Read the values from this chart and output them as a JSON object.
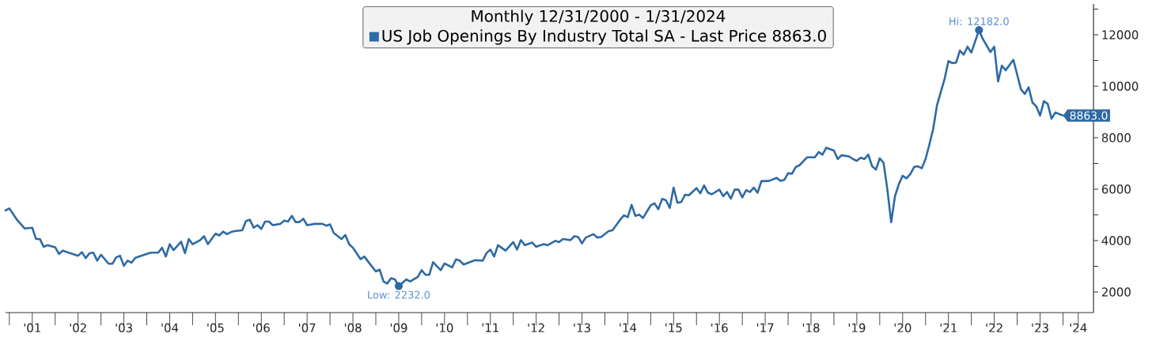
{
  "chart_data": {
    "type": "line",
    "legend_title": "Monthly 12/31/2000 - 1/31/2024",
    "legend": "top",
    "x": [
      "2000-12",
      "2001-01",
      "2001-03",
      "2001-05",
      "2001-07",
      "2001-08",
      "2001-09",
      "2001-10",
      "2001-11",
      "2002-01",
      "2002-02",
      "2002-03",
      "2002-05",
      "2002-07",
      "2002-08",
      "2002-09",
      "2002-10",
      "2002-11",
      "2002-12",
      "2003-01",
      "2003-03",
      "2003-04",
      "2003-05",
      "2003-06",
      "2003-07",
      "2003-08",
      "2003-09",
      "2003-10",
      "2003-12",
      "2004-02",
      "2004-04",
      "2004-05",
      "2004-06",
      "2004-07",
      "2004-08",
      "2004-10",
      "2004-11",
      "2004-12",
      "2005-01",
      "2005-03",
      "2005-04",
      "2005-05",
      "2005-07",
      "2005-08",
      "2005-09",
      "2005-10",
      "2005-11",
      "2005-12",
      "2006-02",
      "2006-03",
      "2006-04",
      "2006-05",
      "2006-06",
      "2006-07",
      "2006-08",
      "2006-09",
      "2006-10",
      "2006-12",
      "2007-01",
      "2007-02",
      "2007-03",
      "2007-04",
      "2007-05",
      "2007-06",
      "2007-07",
      "2007-09",
      "2007-11",
      "2007-12",
      "2008-01",
      "2008-02",
      "2008-04",
      "2008-05",
      "2008-06",
      "2008-07",
      "2008-09",
      "2008-10",
      "2008-11",
      "2009-01",
      "2009-02",
      "2009-03",
      "2009-04",
      "2009-05",
      "2009-06",
      "2009-07",
      "2009-09",
      "2009-10",
      "2009-12",
      "2010-01",
      "2010-02",
      "2010-03",
      "2010-04",
      "2010-06",
      "2010-07",
      "2010-09",
      "2010-10",
      "2010-11",
      "2010-12",
      "2011-03",
      "2011-05",
      "2011-06",
      "2011-07",
      "2011-08",
      "2011-09",
      "2011-11",
      "2012-01",
      "2012-02",
      "2012-03",
      "2012-04",
      "2012-06",
      "2012-07",
      "2012-09",
      "2012-10",
      "2012-12",
      "2013-01",
      "2013-02",
      "2013-04",
      "2013-05",
      "2013-06",
      "2013-07",
      "2013-08",
      "2013-10",
      "2013-11",
      "2013-12",
      "2014-02",
      "2014-03",
      "2014-05",
      "2014-06",
      "2014-07",
      "2014-08",
      "2014-09",
      "2014-10",
      "2014-11",
      "2015-01",
      "2015-02",
      "2015-03",
      "2015-04",
      "2015-05",
      "2015-06",
      "2015-07",
      "2015-08",
      "2015-09",
      "2015-10",
      "2015-11",
      "2016-01",
      "2016-02",
      "2016-03",
      "2016-04",
      "2016-05",
      "2016-07",
      "2016-08",
      "2016-09",
      "2016-10",
      "2016-11",
      "2016-12",
      "2017-01",
      "2017-02",
      "2017-03",
      "2017-04",
      "2017-05",
      "2017-06",
      "2017-08",
      "2017-10",
      "2017-11",
      "2017-12",
      "2018-01",
      "2018-02",
      "2018-03",
      "2018-04",
      "2018-06",
      "2018-08",
      "2018-09",
      "2018-10",
      "2018-11",
      "2019-01",
      "2019-02",
      "2019-03",
      "2019-05",
      "2019-06",
      "2019-07",
      "2019-08",
      "2019-09",
      "2019-10",
      "2019-11",
      "2019-12",
      "2020-01",
      "2020-02",
      "2020-03",
      "2020-04",
      "2020-05",
      "2020-06",
      "2020-07",
      "2020-08",
      "2020-09",
      "2020-10",
      "2020-11",
      "2020-12",
      "2021-01",
      "2021-02",
      "2021-03",
      "2021-04",
      "2021-05",
      "2021-06",
      "2021-07",
      "2021-08",
      "2021-09",
      "2021-10",
      "2021-11",
      "2021-12",
      "2022-01",
      "2022-03",
      "2022-04",
      "2022-06",
      "2022-07",
      "2022-08",
      "2022-09",
      "2022-10",
      "2022-12",
      "2023-02",
      "2023-03",
      "2023-04",
      "2023-05",
      "2023-06",
      "2023-07",
      "2023-08",
      "2023-09",
      "2023-10",
      "2023-11",
      "2024-01"
    ],
    "series": [
      {
        "name": "US Job Openings By Industry Total SA - Last Price 8863.0",
        "color": "#2e6aa4",
        "values": [
          5170,
          5250,
          4810,
          4470,
          4500,
          4060,
          4060,
          3760,
          3820,
          3740,
          3480,
          3610,
          3510,
          3410,
          3550,
          3320,
          3510,
          3530,
          3220,
          3450,
          3100,
          3100,
          3350,
          3410,
          3020,
          3220,
          3140,
          3330,
          3430,
          3530,
          3530,
          3720,
          3380,
          3860,
          3630,
          3960,
          3510,
          4060,
          3860,
          4020,
          4170,
          3860,
          4270,
          4200,
          4350,
          4250,
          4330,
          4370,
          4400,
          4760,
          4810,
          4500,
          4600,
          4450,
          4740,
          4740,
          4600,
          4650,
          4780,
          4740,
          4960,
          4720,
          4720,
          4850,
          4600,
          4650,
          4650,
          4580,
          4630,
          4290,
          4060,
          4220,
          3860,
          3720,
          3280,
          3380,
          3180,
          2800,
          2870,
          2410,
          2330,
          2540,
          2490,
          2232,
          2490,
          2410,
          2590,
          2850,
          2670,
          2670,
          3160,
          2850,
          3110,
          2960,
          3270,
          3220,
          3070,
          3240,
          3220,
          3510,
          3650,
          3380,
          3820,
          3610,
          3940,
          3650,
          4020,
          3820,
          3920,
          3760,
          3860,
          3820,
          3990,
          3940,
          4060,
          4020,
          4170,
          4140,
          3890,
          4120,
          4250,
          4120,
          4140,
          4370,
          4400,
          4810,
          4980,
          4910,
          5390,
          4960,
          5010,
          4880,
          5370,
          5450,
          5220,
          5620,
          5570,
          5270,
          6060,
          5470,
          5500,
          5780,
          5760,
          6040,
          5840,
          6140,
          5860,
          5800,
          5980,
          5730,
          5890,
          5630,
          5980,
          5980,
          5680,
          5960,
          5890,
          6060,
          5860,
          6310,
          6320,
          6440,
          6320,
          6360,
          6620,
          6600,
          6860,
          6930,
          7240,
          7240,
          7440,
          7340,
          7610,
          7500,
          7170,
          7320,
          7270,
          7170,
          7100,
          7220,
          7170,
          7340,
          6890,
          6760,
          7200,
          7030,
          5990,
          4710,
          5730,
          6190,
          6520,
          6420,
          6580,
          6860,
          6890,
          6810,
          7170,
          7730,
          8340,
          9260,
          9780,
          10290,
          10980,
          10900,
          10920,
          11390,
          11230,
          11540,
          11310,
          12182,
          11840,
          11330,
          11540,
          10190,
          10800,
          10620,
          11030,
          9880,
          9700,
          9960,
          9370,
          9220,
          8860,
          9420,
          9320,
          8740,
          8980,
          8863
        ]
      }
    ],
    "xlim": [
      "2000-12",
      "2024-09"
    ],
    "xticks": [
      {
        "value": "2001",
        "label": null
      },
      {
        "value": "2002",
        "label": null
      },
      {
        "value": "2003",
        "label": null
      },
      {
        "value": "2004",
        "label": null
      },
      {
        "value": "2005",
        "label": null
      },
      {
        "value": "2006",
        "label": null
      },
      {
        "value": "2007",
        "label": null
      },
      {
        "value": "2008",
        "label": null
      },
      {
        "value": "2009",
        "label": null
      },
      {
        "value": "2010",
        "label": null
      },
      {
        "value": "2011",
        "label": null
      },
      {
        "value": "2012",
        "label": null
      },
      {
        "value": "2013",
        "label": null
      },
      {
        "value": "2014",
        "label": null
      },
      {
        "value": "2015",
        "label": null
      },
      {
        "value": "2016",
        "label": null
      },
      {
        "value": "2017",
        "label": null
      },
      {
        "value": "2018",
        "label": null
      },
      {
        "value": "2019",
        "label": null
      },
      {
        "value": "2020",
        "label": null
      },
      {
        "value": "2021",
        "label": null
      },
      {
        "value": "2022",
        "label": null
      },
      {
        "value": "2023",
        "label": null
      },
      {
        "value": "2024",
        "label": null
      },
      {
        "value": "2001-07",
        "label": "'01"
      },
      {
        "value": "2002-07",
        "label": "'02"
      },
      {
        "value": "2003-07",
        "label": "'03"
      },
      {
        "value": "2004-07",
        "label": "'04"
      },
      {
        "value": "2005-07",
        "label": "'05"
      },
      {
        "value": "2006-07",
        "label": "'06"
      },
      {
        "value": "2007-07",
        "label": "'07"
      },
      {
        "value": "2008-07",
        "label": "'08"
      },
      {
        "value": "2009-07",
        "label": "'09"
      },
      {
        "value": "2010-07",
        "label": "'10"
      },
      {
        "value": "2011-07",
        "label": "'11"
      },
      {
        "value": "2012-07",
        "label": "'12"
      },
      {
        "value": "2013-07",
        "label": "'13"
      },
      {
        "value": "2014-07",
        "label": "'14"
      },
      {
        "value": "2015-07",
        "label": "'15"
      },
      {
        "value": "2016-07",
        "label": "'16"
      },
      {
        "value": "2017-07",
        "label": "'17"
      },
      {
        "value": "2018-07",
        "label": "'18"
      },
      {
        "value": "2019-07",
        "label": "'19"
      },
      {
        "value": "2020-07",
        "label": "'20"
      },
      {
        "value": "2021-07",
        "label": "'21"
      },
      {
        "value": "2022-07",
        "label": "'22"
      },
      {
        "value": "2023-07",
        "label": "'23"
      },
      {
        "value": "2024-05",
        "label": "'24"
      }
    ],
    "ylim": [
      1200,
      13200
    ],
    "yticks": [
      2000,
      {
        "value": 3000,
        "label": null
      },
      4000,
      {
        "value": 5000,
        "label": null
      },
      6000,
      {
        "value": 7000,
        "label": null
      },
      8000,
      {
        "value": 9000,
        "label": null
      },
      10000,
      {
        "value": 11000,
        "label": null
      },
      12000,
      {
        "value": 13000,
        "label": null
      }
    ],
    "annotations": [
      {
        "text": "Hi: 12182.0",
        "x": "2022-03",
        "y": 12182
      },
      {
        "text": "Low: 2232.0",
        "x": "2009-07",
        "y": 2232
      },
      {
        "text": "8863.0",
        "x": "2024-01",
        "y": 8863
      }
    ]
  }
}
